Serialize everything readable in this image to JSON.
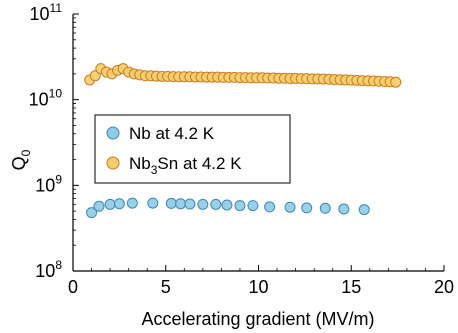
{
  "chart_data": {
    "type": "scatter",
    "title": "",
    "xlabel": "Accelerating gradient (MV/m)",
    "ylabel": "Q",
    "ylabel_subscript": "0",
    "xlim": [
      0,
      20
    ],
    "ylim_log10": [
      8,
      11
    ],
    "y_scale": "log",
    "grid": false,
    "legend_placement": "center-left",
    "x_ticks": [
      "0",
      "5",
      "10",
      "15",
      "20"
    ],
    "y_ticks": [
      {
        "base": "10",
        "exp": "8"
      },
      {
        "base": "10",
        "exp": "9"
      },
      {
        "base": "10",
        "exp": "10"
      },
      {
        "base": "10",
        "exp": "11"
      }
    ],
    "series": [
      {
        "name": "Nb at 4.2 K",
        "legend_parts": [
          "Nb at 4.2 K"
        ],
        "color": "#8ecbe6",
        "edge": "#3c88b4",
        "x": [
          1.0,
          1.4,
          2.0,
          2.5,
          3.2,
          4.3,
          5.3,
          5.8,
          6.3,
          7.0,
          7.7,
          8.3,
          9.0,
          9.7,
          10.6,
          11.7,
          12.6,
          13.6,
          14.6,
          15.7
        ],
        "y": [
          480000000.0,
          570000000.0,
          600000000.0,
          610000000.0,
          620000000.0,
          620000000.0,
          615000000.0,
          610000000.0,
          605000000.0,
          600000000.0,
          600000000.0,
          590000000.0,
          580000000.0,
          580000000.0,
          560000000.0,
          555000000.0,
          545000000.0,
          540000000.0,
          530000000.0,
          520000000.0
        ]
      },
      {
        "name": "Nb3Sn at 4.2 K",
        "legend_parts": [
          "Nb",
          "3",
          "Sn at 4.2 K"
        ],
        "color": "#f5cf6e",
        "edge": "#cf7a1e",
        "x": [
          0.9,
          1.2,
          1.5,
          1.8,
          2.1,
          2.4,
          2.7,
          3.0,
          3.3,
          3.6,
          3.9,
          4.2,
          4.5,
          4.8,
          5.1,
          5.4,
          5.7,
          6.0,
          6.3,
          6.6,
          6.9,
          7.2,
          7.5,
          7.8,
          8.1,
          8.4,
          8.7,
          9.0,
          9.3,
          9.6,
          9.9,
          10.2,
          10.5,
          10.8,
          11.1,
          11.4,
          11.7,
          12.0,
          12.3,
          12.6,
          12.9,
          13.2,
          13.5,
          13.8,
          14.1,
          14.4,
          14.7,
          15.0,
          15.3,
          15.6,
          15.9,
          16.2,
          16.5,
          16.8,
          17.1,
          17.4
        ],
        "y": [
          17000000000.0,
          19000000000.0,
          23000000000.0,
          21000000000.0,
          20000000000.0,
          22000000000.0,
          23000000000.0,
          21000000000.0,
          20000000000.0,
          19500000000.0,
          19000000000.0,
          19000000000.0,
          18800000000.0,
          18700000000.0,
          18700000000.0,
          18600000000.0,
          18500000000.0,
          18500000000.0,
          18500000000.0,
          18400000000.0,
          18400000000.0,
          18300000000.0,
          18300000000.0,
          18300000000.0,
          18200000000.0,
          18200000000.0,
          18200000000.0,
          18100000000.0,
          18100000000.0,
          18000000000.0,
          18000000000.0,
          18000000000.0,
          17900000000.0,
          17900000000.0,
          17800000000.0,
          17800000000.0,
          17700000000.0,
          17700000000.0,
          17600000000.0,
          17600000000.0,
          17500000000.0,
          17500000000.0,
          17400000000.0,
          17300000000.0,
          17200000000.0,
          17100000000.0,
          17000000000.0,
          16900000000.0,
          16800000000.0,
          16700000000.0,
          16600000000.0,
          16500000000.0,
          16400000000.0,
          16300000000.0,
          16200000000.0,
          16000000000.0
        ]
      }
    ]
  }
}
